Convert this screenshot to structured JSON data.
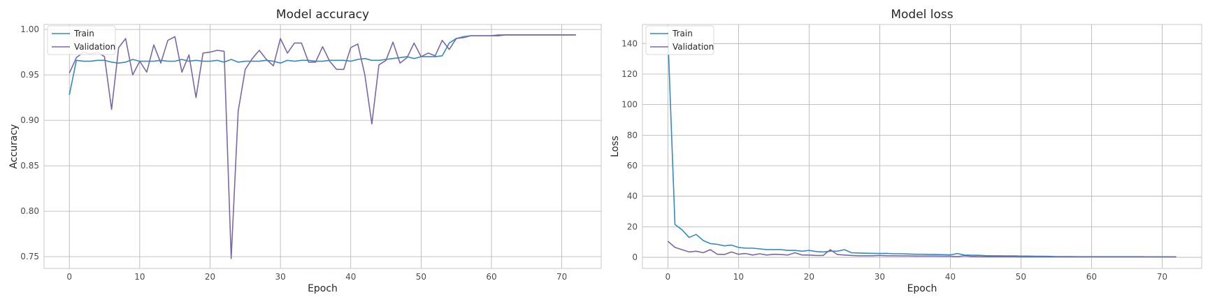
{
  "chart_data": [
    {
      "type": "line",
      "title": "Model accuracy",
      "xlabel": "Epoch",
      "ylabel": "Accuracy",
      "xlim": [
        -3.6,
        75.6
      ],
      "ylim": [
        0.737,
        1.0055
      ],
      "xticks": [
        0,
        10,
        20,
        30,
        40,
        50,
        60,
        70
      ],
      "yticks": [
        0.75,
        0.8,
        0.85,
        0.9,
        0.95,
        1.0
      ],
      "ytick_labels": [
        "0.75",
        "0.80",
        "0.85",
        "0.90",
        "0.95",
        "1.00"
      ],
      "grid": true,
      "legend": "top-left",
      "series": [
        {
          "name": "Train",
          "color": "#348abd",
          "x": [
            0,
            1,
            2,
            3,
            4,
            5,
            6,
            7,
            8,
            9,
            10,
            11,
            12,
            13,
            14,
            15,
            16,
            17,
            18,
            19,
            20,
            21,
            22,
            23,
            24,
            25,
            26,
            27,
            28,
            29,
            30,
            31,
            32,
            33,
            34,
            35,
            36,
            37,
            38,
            39,
            40,
            41,
            42,
            43,
            44,
            45,
            46,
            47,
            48,
            49,
            50,
            51,
            52,
            53,
            54,
            55,
            56,
            57,
            58,
            59,
            60,
            61,
            62,
            63,
            64,
            65,
            66,
            67,
            68,
            69,
            70,
            71,
            72
          ],
          "values": [
            0.928,
            0.966,
            0.965,
            0.965,
            0.966,
            0.966,
            0.964,
            0.963,
            0.964,
            0.967,
            0.965,
            0.965,
            0.965,
            0.966,
            0.965,
            0.965,
            0.967,
            0.965,
            0.966,
            0.965,
            0.965,
            0.966,
            0.964,
            0.967,
            0.964,
            0.965,
            0.965,
            0.965,
            0.966,
            0.965,
            0.963,
            0.966,
            0.965,
            0.966,
            0.966,
            0.965,
            0.965,
            0.966,
            0.966,
            0.966,
            0.965,
            0.967,
            0.968,
            0.966,
            0.966,
            0.967,
            0.968,
            0.969,
            0.97,
            0.968,
            0.97,
            0.97,
            0.97,
            0.971,
            0.985,
            0.99,
            0.992,
            0.993,
            0.993,
            0.993,
            0.993,
            0.994,
            0.994,
            0.994,
            0.994,
            0.994,
            0.994,
            0.994,
            0.994,
            0.994,
            0.994,
            0.994,
            0.994
          ]
        },
        {
          "name": "Validation",
          "color": "#7a68a6",
          "x": [
            0,
            1,
            2,
            3,
            4,
            5,
            6,
            7,
            8,
            9,
            10,
            11,
            12,
            13,
            14,
            15,
            16,
            17,
            18,
            19,
            20,
            21,
            22,
            23,
            24,
            25,
            26,
            27,
            28,
            29,
            30,
            31,
            32,
            33,
            34,
            35,
            36,
            37,
            38,
            39,
            40,
            41,
            42,
            43,
            44,
            45,
            46,
            47,
            48,
            49,
            50,
            51,
            52,
            53,
            54,
            55,
            56,
            57,
            58,
            59,
            60,
            61,
            62,
            63,
            64,
            65,
            66,
            67,
            68,
            69,
            70,
            71,
            72
          ],
          "values": [
            0.952,
            0.969,
            0.975,
            0.973,
            0.975,
            0.97,
            0.912,
            0.98,
            0.99,
            0.95,
            0.965,
            0.953,
            0.983,
            0.963,
            0.988,
            0.992,
            0.953,
            0.972,
            0.925,
            0.974,
            0.975,
            0.977,
            0.976,
            0.748,
            0.91,
            0.956,
            0.968,
            0.977,
            0.967,
            0.96,
            0.99,
            0.974,
            0.985,
            0.985,
            0.964,
            0.964,
            0.981,
            0.965,
            0.956,
            0.956,
            0.98,
            0.984,
            0.95,
            0.896,
            0.961,
            0.966,
            0.986,
            0.963,
            0.969,
            0.985,
            0.97,
            0.974,
            0.971,
            0.988,
            0.978,
            0.99,
            0.991,
            0.993,
            0.993,
            0.993,
            0.993,
            0.993,
            0.994,
            0.994,
            0.994,
            0.994,
            0.994,
            0.994,
            0.994,
            0.994,
            0.994,
            0.994,
            0.994
          ]
        }
      ]
    },
    {
      "type": "line",
      "title": "Model loss",
      "xlabel": "Epoch",
      "ylabel": "Loss",
      "xlim": [
        -3.6,
        75.6
      ],
      "ylim": [
        -7.3,
        152.5
      ],
      "xticks": [
        0,
        10,
        20,
        30,
        40,
        50,
        60,
        70
      ],
      "yticks": [
        0,
        20,
        40,
        60,
        80,
        100,
        120,
        140
      ],
      "ytick_labels": [
        "0",
        "20",
        "40",
        "60",
        "80",
        "100",
        "120",
        "140"
      ],
      "grid": true,
      "legend": "top-left",
      "series": [
        {
          "name": "Train",
          "color": "#348abd",
          "x": [
            0,
            1,
            2,
            3,
            4,
            5,
            6,
            7,
            8,
            9,
            10,
            11,
            12,
            13,
            14,
            15,
            16,
            17,
            18,
            19,
            20,
            21,
            22,
            23,
            24,
            25,
            26,
            27,
            28,
            29,
            30,
            31,
            32,
            33,
            34,
            35,
            36,
            37,
            38,
            39,
            40,
            41,
            42,
            43,
            44,
            45,
            46,
            47,
            48,
            49,
            50,
            51,
            52,
            53,
            54,
            55,
            56,
            57,
            58,
            59,
            60,
            61,
            62,
            63,
            64,
            65,
            66,
            67,
            68,
            69,
            70,
            71,
            72
          ],
          "values": [
            145,
            21.5,
            18,
            13,
            15,
            11,
            9,
            8.5,
            7.5,
            8,
            6.5,
            6,
            6,
            5.5,
            5,
            5,
            5,
            4.5,
            4.5,
            4,
            4.5,
            3.8,
            3.5,
            4,
            4,
            5,
            3,
            2.8,
            2.7,
            2.6,
            2.5,
            2.6,
            2.3,
            2.3,
            2.2,
            2,
            2,
            1.9,
            1.8,
            1.7,
            1.6,
            2.5,
            1.5,
            1.4,
            1.3,
            1.1,
            1,
            1,
            0.9,
            0.9,
            0.8,
            0.8,
            0.7,
            0.7,
            0.6,
            0.5,
            0.5,
            0.5,
            0.4,
            0.4,
            0.4,
            0.4,
            0.4,
            0.4,
            0.4,
            0.4,
            0.4,
            0.4,
            0.3,
            0.3,
            0.3,
            0.3,
            0.3
          ]
        },
        {
          "name": "Validation",
          "color": "#7a68a6",
          "x": [
            0,
            1,
            2,
            3,
            4,
            5,
            6,
            7,
            8,
            9,
            10,
            11,
            12,
            13,
            14,
            15,
            16,
            17,
            18,
            19,
            20,
            21,
            22,
            23,
            24,
            25,
            26,
            27,
            28,
            29,
            30,
            31,
            32,
            33,
            34,
            35,
            36,
            37,
            38,
            39,
            40,
            41,
            42,
            43,
            44,
            45,
            46,
            47,
            48,
            49,
            50,
            51,
            52,
            53,
            54,
            55,
            56,
            57,
            58,
            59,
            60,
            61,
            62,
            63,
            64,
            65,
            66,
            67,
            68,
            69,
            70,
            71,
            72
          ],
          "values": [
            10.5,
            6.5,
            5,
            3.5,
            4,
            3,
            5,
            2,
            1.8,
            3.5,
            2,
            2.5,
            1.5,
            2.3,
            1.5,
            2,
            1.8,
            1.5,
            3,
            1.5,
            1.5,
            1.2,
            1.2,
            5,
            1.8,
            1.5,
            1.2,
            1,
            1,
            1,
            1.2,
            1,
            1,
            0.9,
            0.9,
            0.8,
            0.8,
            0.8,
            0.8,
            0.7,
            0.7,
            0.5,
            1,
            0.6,
            0.5,
            0.4,
            0.4,
            0.4,
            0.4,
            0.4,
            0.3,
            0.3,
            0.3,
            0.3,
            0.3,
            0.3,
            0.3,
            0.3,
            0.3,
            0.3,
            0.3,
            0.3,
            0.3,
            0.3,
            0.3,
            0.3,
            0.3,
            0.3,
            0.3,
            0.3,
            0.3,
            0.3,
            0.3
          ]
        }
      ]
    }
  ]
}
